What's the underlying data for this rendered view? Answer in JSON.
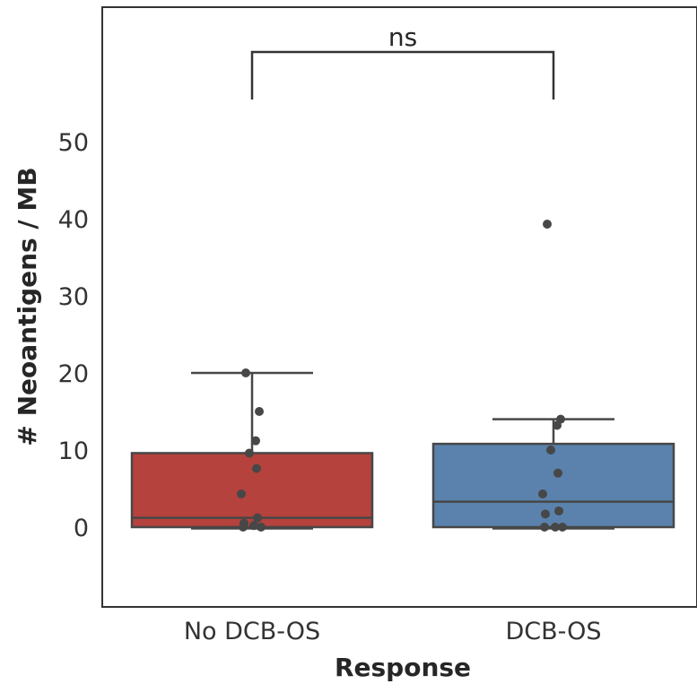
{
  "chart_data": {
    "type": "box",
    "xlabel": "Response",
    "ylabel": "# Neoantigens / MB",
    "categories": [
      "No DCB-OS",
      "DCB-OS"
    ],
    "yticks": [
      0,
      10,
      20,
      30,
      40,
      50
    ],
    "ylim": [
      -10,
      68
    ],
    "grid": false,
    "significance": {
      "groups": [
        "No DCB-OS",
        "DCB-OS"
      ],
      "label": "ns"
    },
    "boxes": [
      {
        "category": "No DCB-OS",
        "color": "#b5423d",
        "min": 0,
        "q1": 0,
        "median": 1.2,
        "q3": 9.6,
        "max": 20,
        "points": [
          20,
          15,
          11.2,
          9.6,
          7.6,
          4.3,
          1.2,
          0.5,
          0.2,
          0,
          0
        ]
      },
      {
        "category": "DCB-OS",
        "color": "#5a82ad",
        "min": 0,
        "q1": 0,
        "median": 3.3,
        "q3": 10.8,
        "max": 14,
        "points": [
          39.3,
          14,
          13.2,
          10,
          7,
          4.3,
          2.1,
          1.7,
          0,
          0,
          0
        ]
      }
    ]
  }
}
